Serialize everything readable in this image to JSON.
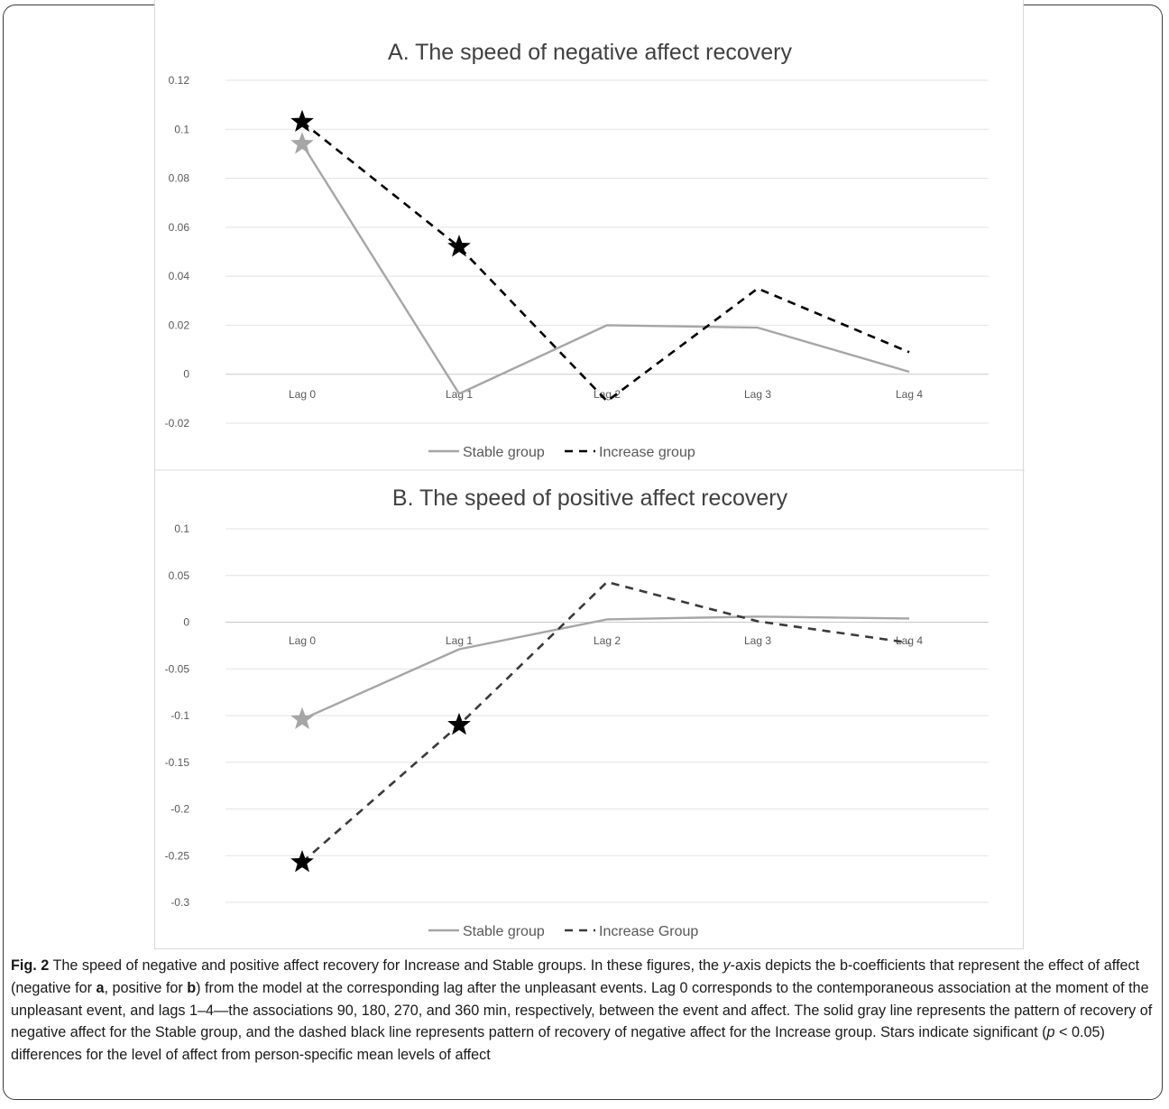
{
  "chart_data": [
    {
      "type": "line",
      "title": "A. The speed of negative affect recovery",
      "categories": [
        "Lag 0",
        "Lag 1",
        "Lag 2",
        "Lag 3",
        "Lag 4"
      ],
      "y_ticks": [
        "0.12",
        "0.1",
        "0.08",
        "0.06",
        "0.04",
        "0.02",
        "0",
        "-0.02"
      ],
      "ylim": [
        -0.02,
        0.12
      ],
      "grid": true,
      "legend_position": "bottom",
      "series": [
        {
          "name": "Stable group",
          "values": [
            0.094,
            -0.008,
            0.02,
            0.019,
            0.001
          ],
          "color": "#a6a6a6",
          "dash": "solid",
          "stars": [
            0
          ]
        },
        {
          "name": "Increase group",
          "values": [
            0.103,
            0.052,
            -0.011,
            0.035,
            0.009
          ],
          "color": "#000000",
          "dash": "dashed",
          "stars": [
            0,
            1
          ]
        }
      ]
    },
    {
      "type": "line",
      "title": "B. The speed of positive affect recovery",
      "categories": [
        "Lag 0",
        "Lag 1",
        "Lag 2",
        "Lag 3",
        "Lag 4"
      ],
      "y_ticks": [
        "0.1",
        "0.05",
        "0",
        "-0.05",
        "-0.1",
        "-0.15",
        "-0.2",
        "-0.25",
        "-0.3"
      ],
      "ylim": [
        -0.3,
        0.1
      ],
      "grid": true,
      "legend_position": "bottom",
      "series": [
        {
          "name": "Stable group",
          "values": [
            -0.104,
            -0.029,
            0.003,
            0.006,
            0.004
          ],
          "color": "#a6a6a6",
          "dash": "solid",
          "stars": [
            0
          ]
        },
        {
          "name": "Increase Group",
          "values": [
            -0.257,
            -0.11,
            0.043,
            0.001,
            -0.022
          ],
          "color": "#3a3a3a",
          "dash": "dashed",
          "stars": [
            0,
            1
          ]
        }
      ]
    }
  ],
  "caption": {
    "label": "Fig. 2",
    "text_1": " The speed of negative and positive affect recovery for Increase and Stable groups. In these figures, the ",
    "italic_1": "y",
    "text_2": "-axis depicts the b-coefficients that represent the effect of affect (negative for ",
    "bold_a": "a",
    "text_3": ", positive for ",
    "bold_b": "b",
    "text_4": ") from the model at the corresponding lag after the unpleasant events. Lag 0 corresponds to the contemporaneous association at the moment of the unpleasant event, and lags 1–4—the associations 90, 180, 270, and 360 min, respectively, between the event and affect. The solid gray line represents the pattern of recovery of negative affect for the Stable group, and the dashed black line represents pattern of recovery of negative affect for the Increase group. Stars indicate significant (",
    "italic_p": "p",
    "text_5": " < 0.05) differences for the level of affect from person-specific mean levels of affect"
  }
}
